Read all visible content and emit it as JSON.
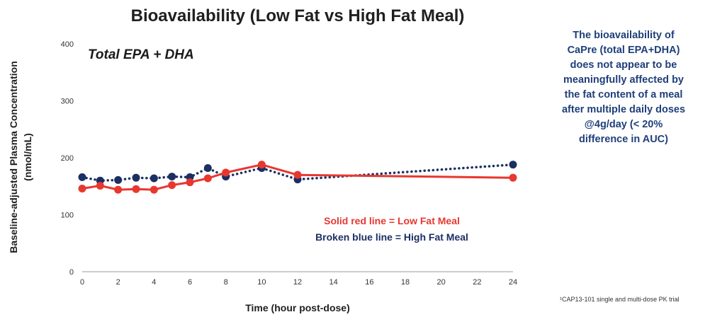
{
  "chart_data": {
    "type": "line",
    "title": "Bioavailability (Low Fat vs High Fat Meal)",
    "subtitle": "Total EPA + DHA",
    "xlabel": "Time (hour post-dose)",
    "ylabel_lines": [
      "Baseline-adjusted Plasma Concentration",
      "(nmol/mL)"
    ],
    "xlim": [
      0,
      24
    ],
    "ylim": [
      0,
      400
    ],
    "x_ticks": [
      0,
      2,
      4,
      6,
      8,
      10,
      12,
      14,
      16,
      18,
      20,
      22,
      24
    ],
    "y_ticks": [
      0,
      100,
      200,
      300,
      400
    ],
    "grid": false,
    "series": [
      {
        "name": "Low Fat Meal",
        "color": "#e8372f",
        "line_style": "solid",
        "x": [
          0,
          1,
          2,
          3,
          4,
          5,
          6,
          7,
          8,
          10,
          12,
          24
        ],
        "y": [
          146,
          151,
          144,
          145,
          144,
          152,
          157,
          164,
          174,
          188,
          170,
          165
        ]
      },
      {
        "name": "High Fat Meal",
        "color": "#1b2f63",
        "line_style": "dotted",
        "x": [
          0,
          1,
          2,
          3,
          4,
          5,
          6,
          7,
          8,
          10,
          12,
          24
        ],
        "y": [
          166,
          160,
          161,
          165,
          164,
          167,
          166,
          182,
          167,
          182,
          162,
          188
        ]
      }
    ],
    "legend": [
      {
        "text": "Solid red line = Low Fat Meal",
        "color": "#e8372f"
      },
      {
        "text": "Broken blue line = High Fat Meal",
        "color": "#1b2f63"
      }
    ]
  },
  "note": {
    "lines": [
      "The bioavailability of",
      "CaPre (total EPA+DHA)",
      "does not appear to be",
      "meaningfully affected by",
      "the fat content of a meal",
      "after multiple daily doses",
      "@4g/day (< 20%",
      "difference in AUC)"
    ]
  },
  "footnote": "¹CAP13-101 single and multi-dose PK trial"
}
